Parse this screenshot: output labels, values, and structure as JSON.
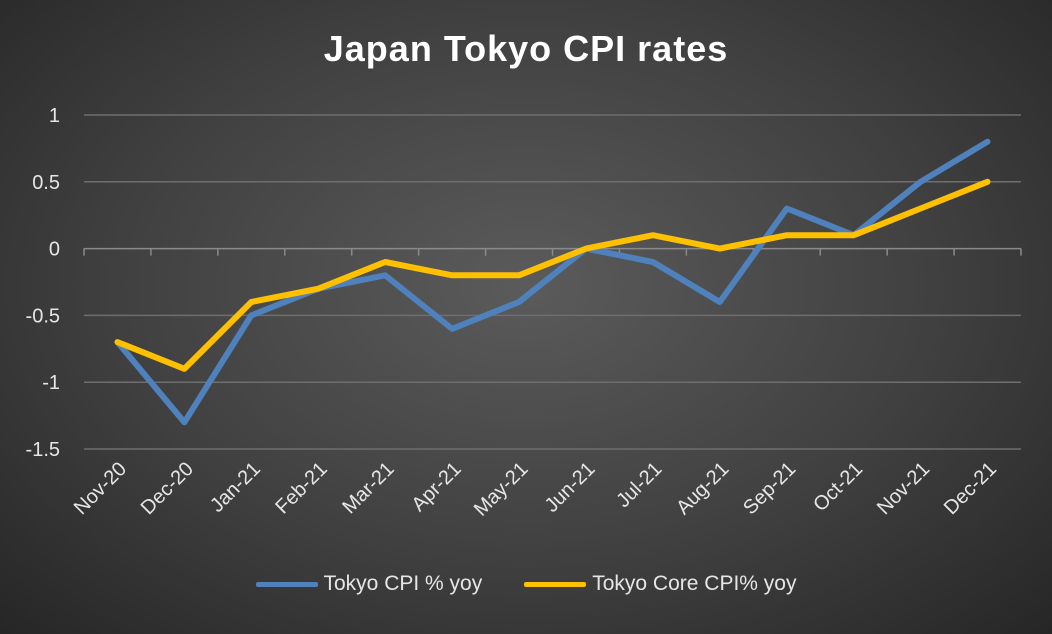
{
  "chart_data": {
    "type": "line",
    "title": "Japan Tokyo CPI rates",
    "xlabel": "",
    "ylabel": "",
    "categories": [
      "Nov-20",
      "Dec-20",
      "Jan-21",
      "Feb-21",
      "Mar-21",
      "Apr-21",
      "May-21",
      "Jun-21",
      "Jul-21",
      "Aug-21",
      "Sep-21",
      "Oct-21",
      "Nov-21",
      "Dec-21"
    ],
    "ylim": [
      -1.5,
      1
    ],
    "yticks": [
      "1",
      "0.5",
      "0",
      "-0.5",
      "-1",
      "-1.5"
    ],
    "grid": true,
    "legend_position": "bottom",
    "series": [
      {
        "name": "Tokyo CPI % yoy",
        "color": "#4f81bd",
        "values": [
          -0.7,
          -1.3,
          -0.5,
          -0.3,
          -0.2,
          -0.6,
          -0.4,
          0.0,
          -0.1,
          -0.4,
          0.3,
          0.1,
          0.5,
          0.8
        ]
      },
      {
        "name": "Tokyo Core CPI% yoy",
        "color": "#ffc000",
        "values": [
          -0.7,
          -0.9,
          -0.4,
          -0.3,
          -0.1,
          -0.2,
          -0.2,
          0.0,
          0.1,
          0.0,
          0.1,
          0.1,
          0.3,
          0.5
        ]
      }
    ]
  }
}
